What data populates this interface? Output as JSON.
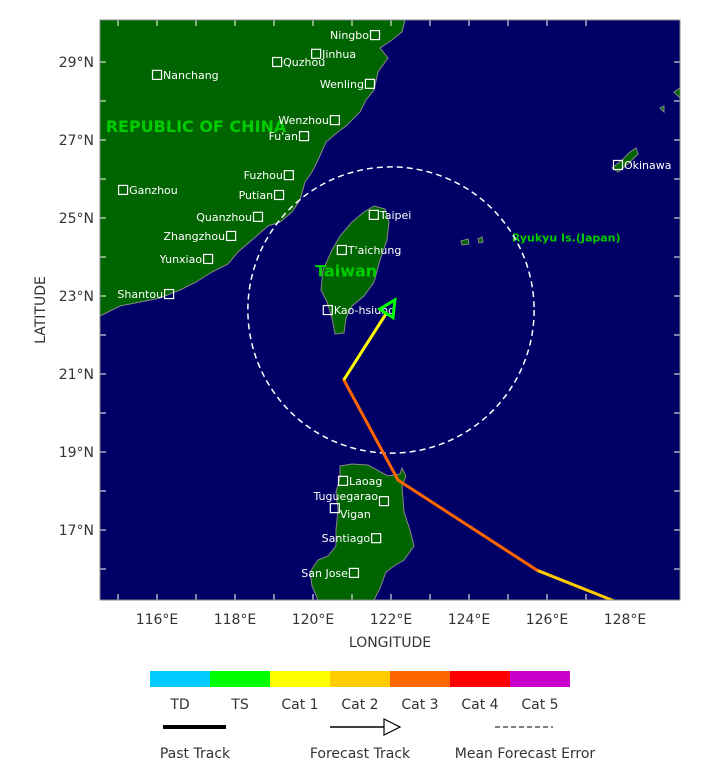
{
  "map": {
    "xlabel": "LONGITUDE",
    "ylabel": "LATITUDE",
    "lon_range": [
      113.1,
      127.9
    ],
    "lat_range": [
      15.2,
      30.0
    ],
    "lon_ticks": [
      "116°E",
      "118°E",
      "120°E",
      "122°E",
      "124°E",
      "126°E",
      "128°E"
    ],
    "lon_tick_values": [
      116,
      118,
      120,
      122,
      124,
      126,
      128
    ],
    "lat_ticks": [
      "29°N",
      "27°N",
      "25°N",
      "23°N",
      "21°N",
      "19°N",
      "17°N"
    ],
    "lat_tick_values": [
      29,
      27,
      25,
      23,
      21,
      19,
      17
    ],
    "colors": {
      "ocean": "#000066",
      "land": "#006400",
      "coast": "#888888",
      "region_label": "#00cc00",
      "city": "#ffffff"
    },
    "regions": [
      {
        "name": "REPUBLIC OF CHINA",
        "lon": 117.0,
        "lat": 27.2
      },
      {
        "name": "Taiwan",
        "lon": 120.85,
        "lat": 23.5
      },
      {
        "name": "Ryukyu Is.(Japan)",
        "lon": 125.1,
        "lat": 24.4
      }
    ],
    "cities": [
      {
        "name": "Ningbo",
        "lon": 121.59,
        "lat": 29.69,
        "side": "left"
      },
      {
        "name": "Jinhua",
        "lon": 120.08,
        "lat": 29.21,
        "side": "right"
      },
      {
        "name": "Quzhou",
        "lon": 119.08,
        "lat": 29.0,
        "side": "right"
      },
      {
        "name": "Nanchang",
        "lon": 116.0,
        "lat": 28.67,
        "side": "right"
      },
      {
        "name": "Wenling",
        "lon": 121.46,
        "lat": 28.44,
        "side": "left"
      },
      {
        "name": "Wenzhou",
        "lon": 120.56,
        "lat": 27.51,
        "side": "left"
      },
      {
        "name": "Fu'an",
        "lon": 119.77,
        "lat": 27.1,
        "side": "left"
      },
      {
        "name": "Fuzhou",
        "lon": 119.38,
        "lat": 26.1,
        "side": "left"
      },
      {
        "name": "Putian",
        "lon": 119.13,
        "lat": 25.59,
        "side": "left"
      },
      {
        "name": "Quanzhou",
        "lon": 118.59,
        "lat": 25.03,
        "side": "left"
      },
      {
        "name": "Zhangzhou",
        "lon": 117.9,
        "lat": 24.54,
        "side": "left"
      },
      {
        "name": "Yunxiao",
        "lon": 117.31,
        "lat": 23.95,
        "side": "left"
      },
      {
        "name": "Shantou",
        "lon": 116.31,
        "lat": 23.05,
        "side": "left"
      },
      {
        "name": "Ganzhou",
        "lon": 115.13,
        "lat": 25.72,
        "side": "right"
      },
      {
        "name": "Taipei",
        "lon": 121.56,
        "lat": 25.08,
        "side": "right"
      },
      {
        "name": "T'aichung",
        "lon": 120.74,
        "lat": 24.18,
        "side": "right"
      },
      {
        "name": "Kao-hsiung",
        "lon": 120.38,
        "lat": 22.64,
        "side": "right"
      },
      {
        "name": "Okinawa",
        "lon": 127.82,
        "lat": 26.36,
        "side": "right"
      },
      {
        "name": "Laoag",
        "lon": 120.77,
        "lat": 18.26,
        "side": "right"
      },
      {
        "name": "Tuguegarao",
        "lon": 121.82,
        "lat": 17.74,
        "side": "left-up"
      },
      {
        "name": "Vigan",
        "lon": 120.56,
        "lat": 17.56,
        "side": "right-down"
      },
      {
        "name": "Santiago",
        "lon": 121.62,
        "lat": 16.79,
        "side": "left"
      },
      {
        "name": "San Jose",
        "lon": 121.05,
        "lat": 15.9,
        "side": "left"
      }
    ],
    "past_track": [
      {
        "lon": 128.3,
        "lat": 14.95,
        "category": "Cat 2"
      },
      {
        "lon": 125.74,
        "lat": 15.97,
        "category": "Cat 3"
      },
      {
        "lon": 122.18,
        "lat": 18.28,
        "category": "Cat 3"
      },
      {
        "lon": 120.79,
        "lat": 20.85
      }
    ],
    "forecast_track": [
      {
        "lon": 120.79,
        "lat": 20.85,
        "category": "Cat 1"
      },
      {
        "lon": 122.1,
        "lat": 22.9,
        "category": "TS"
      }
    ],
    "forecast_error_circle": {
      "center_lon": 122.0,
      "center_lat": 22.64,
      "radius_deg": 3.67
    }
  },
  "legend": {
    "categories": [
      {
        "label": "TD",
        "color": "#00ccff"
      },
      {
        "label": "TS",
        "color": "#00ff00"
      },
      {
        "label": "Cat 1",
        "color": "#ffff00"
      },
      {
        "label": "Cat 2",
        "color": "#ffcc00"
      },
      {
        "label": "Cat 3",
        "color": "#ff6600"
      },
      {
        "label": "Cat 4",
        "color": "#ff0000"
      },
      {
        "label": "Cat 5",
        "color": "#cc00cc"
      }
    ],
    "past_track_label": "Past Track",
    "forecast_track_label": "Forecast Track",
    "mean_error_label": "Mean Forecast Error"
  }
}
